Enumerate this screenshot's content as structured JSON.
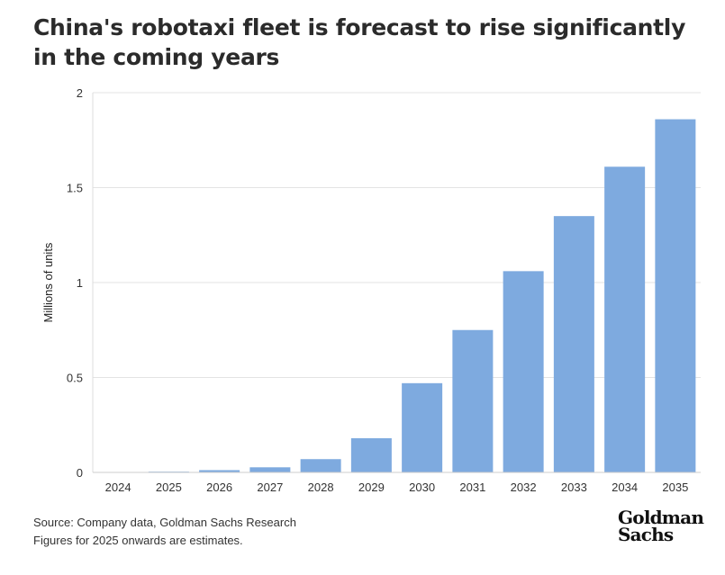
{
  "chart_data": {
    "type": "bar",
    "title": "China's robotaxi fleet is forecast to rise significantly in the coming years",
    "xlabel": "",
    "ylabel": "Millions of units",
    "ylim": [
      0,
      2
    ],
    "yticks": [
      0,
      0.5,
      1,
      1.5,
      2
    ],
    "ytick_labels": [
      "0",
      "0.5",
      "1",
      "1.5",
      "2"
    ],
    "grid": true,
    "categories": [
      "2024",
      "2025",
      "2026",
      "2027",
      "2028",
      "2029",
      "2030",
      "2031",
      "2032",
      "2033",
      "2034",
      "2035"
    ],
    "values": [
      0,
      0.004,
      0.012,
      0.027,
      0.07,
      0.18,
      0.47,
      0.75,
      1.06,
      1.35,
      1.61,
      1.86
    ],
    "bar_color": "#7eaadf"
  },
  "footer": {
    "source": "Source: Company data, Goldman Sachs Research",
    "note": "Figures for 2025 onwards are estimates.",
    "logo_line1": "Goldman",
    "logo_line2": "Sachs"
  }
}
